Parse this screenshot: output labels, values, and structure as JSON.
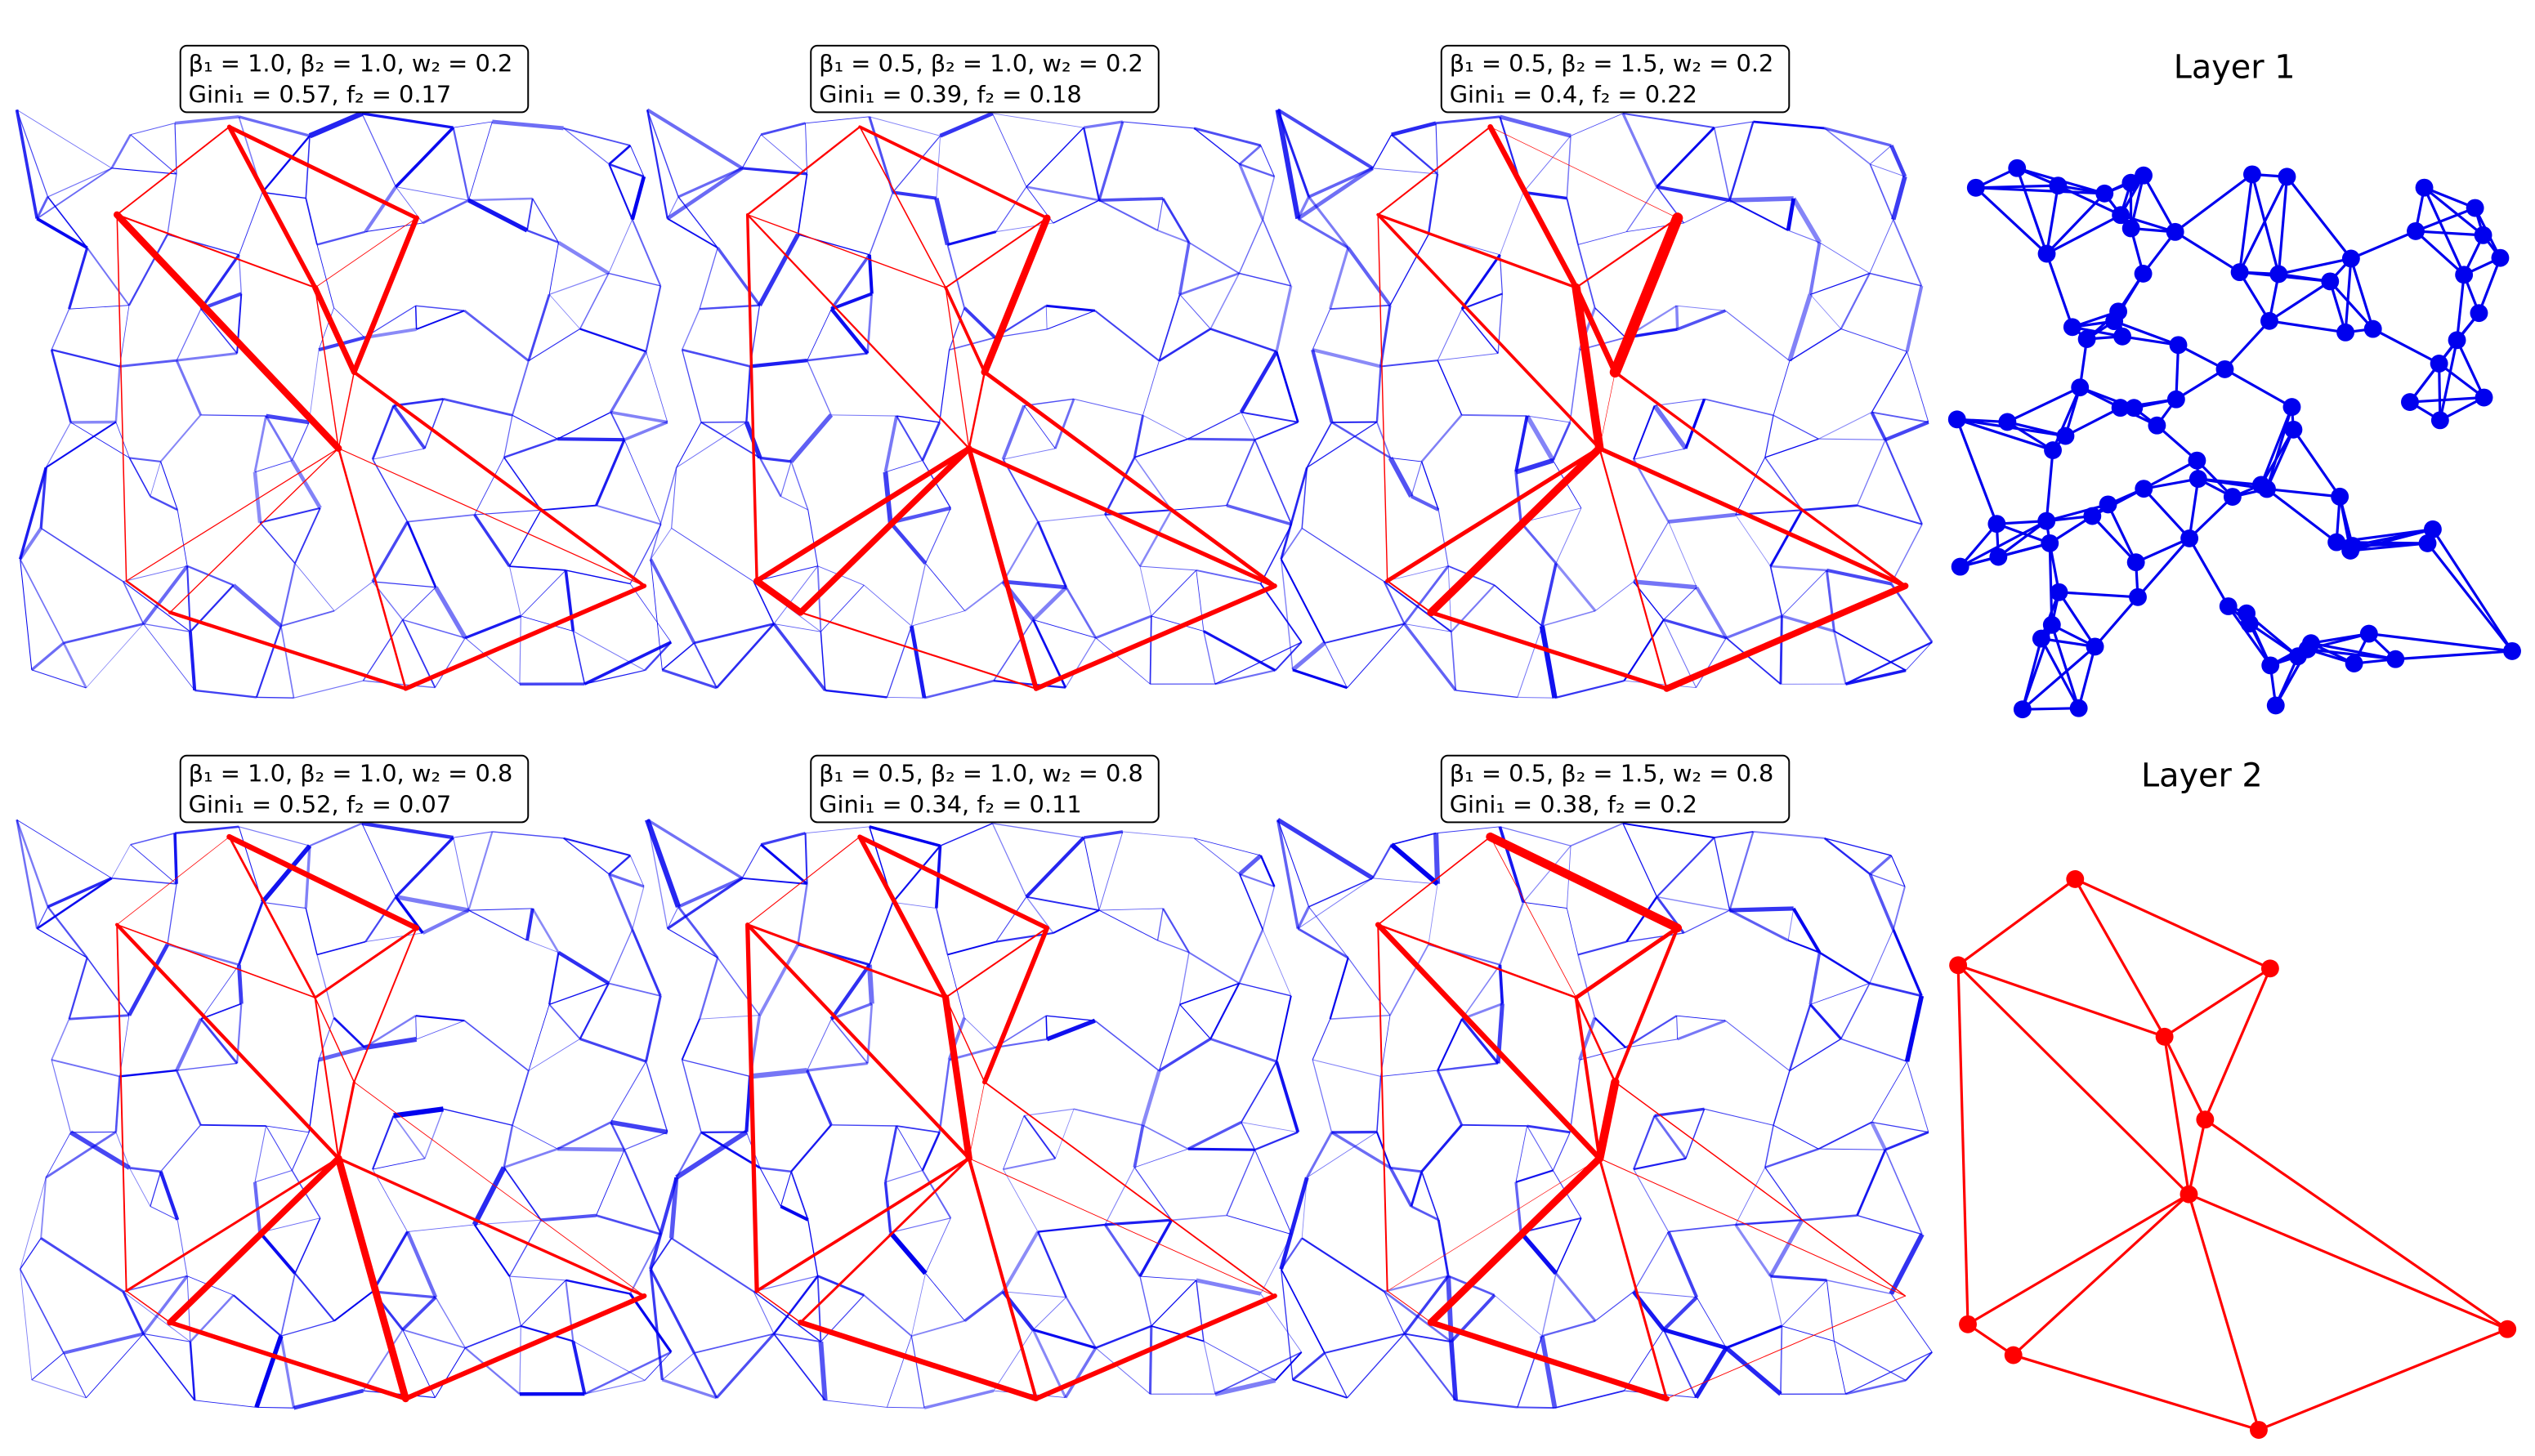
{
  "panels": [
    {
      "line1": "β₁ = 1.0, β₂ = 1.0, w₂ = 0.2",
      "line2": "Gini₁ = 0.57, f₂ = 0.17"
    },
    {
      "line1": "β₁ = 0.5, β₂ = 1.0, w₂ = 0.2",
      "line2": "Gini₁ = 0.39, f₂ = 0.18"
    },
    {
      "line1": "β₁ = 0.5, β₂ = 1.5, w₂ = 0.2",
      "line2": "Gini₁ = 0.4, f₂ = 0.22"
    },
    {
      "line1": "β₁ = 1.0, β₂ = 1.0, w₂ = 0.8",
      "line2": "Gini₁ = 0.52, f₂ = 0.07"
    },
    {
      "line1": "β₁ = 0.5, β₂ = 1.0, w₂ = 0.8",
      "line2": "Gini₁ = 0.34, f₂ = 0.11"
    },
    {
      "line1": "β₁ = 0.5, β₂ = 1.5, w₂ = 0.8",
      "line2": "Gini₁ = 0.38, f₂ = 0.2"
    }
  ],
  "layers": [
    {
      "title": "Layer 1"
    },
    {
      "title": "Layer 2"
    }
  ]
}
